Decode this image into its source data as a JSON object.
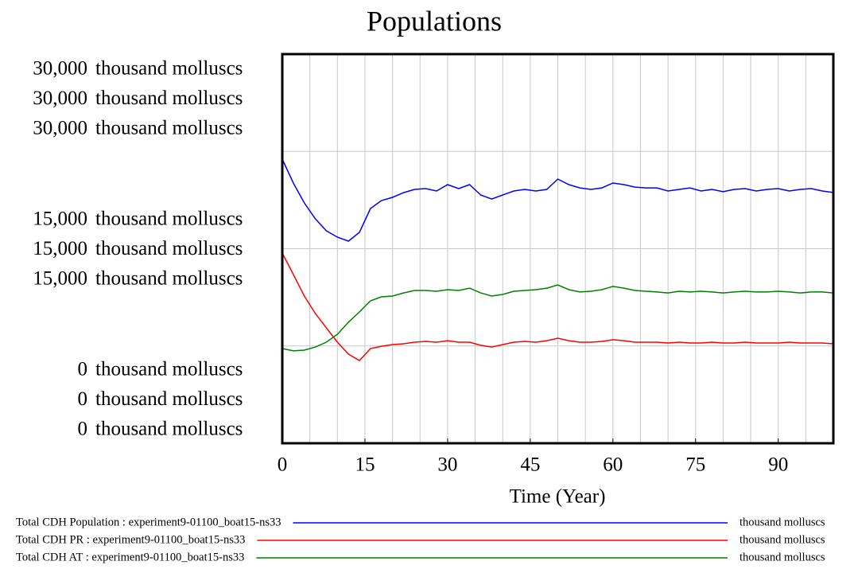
{
  "chart_data": {
    "type": "line",
    "title": "Populations",
    "x_label": "Time (Year)",
    "xlim": [
      0,
      100
    ],
    "xticks": [
      0,
      15,
      30,
      45,
      60,
      75,
      90
    ],
    "ylim": [
      0,
      30000
    ],
    "grid": true,
    "y_axes": [
      {
        "ticks": [
          {
            "value": 30000,
            "label": "30,000"
          },
          {
            "value": 15000,
            "label": "15,000"
          },
          0
        ],
        "unit": "thousand molluscs"
      },
      {
        "ticks": [
          {
            "value": 30000,
            "label": "30,000"
          },
          {
            "value": 15000,
            "label": "15,000"
          },
          0
        ],
        "unit": "thousand molluscs"
      },
      {
        "ticks": [
          {
            "value": 30000,
            "label": "30,000"
          },
          {
            "value": 15000,
            "label": "15,000"
          },
          0
        ],
        "unit": "thousand molluscs"
      }
    ],
    "x": [
      0,
      2,
      4,
      6,
      8,
      10,
      12,
      14,
      16,
      18,
      20,
      22,
      24,
      26,
      28,
      30,
      32,
      34,
      36,
      38,
      40,
      42,
      44,
      46,
      48,
      50,
      52,
      54,
      56,
      58,
      60,
      62,
      64,
      66,
      68,
      70,
      72,
      74,
      76,
      78,
      80,
      82,
      84,
      86,
      88,
      90,
      92,
      94,
      96,
      98,
      100
    ],
    "series": [
      {
        "name": "Total CDH Population : experiment9-01100_boat15-ns33",
        "unit": "thousand molluscs",
        "color": "#0000ff",
        "values": [
          21900,
          20060,
          18530,
          17300,
          16380,
          15890,
          15580,
          16260,
          18100,
          18710,
          18960,
          19320,
          19570,
          19630,
          19450,
          19940,
          19630,
          19940,
          19140,
          18830,
          19140,
          19450,
          19570,
          19450,
          19570,
          20370,
          19940,
          19690,
          19570,
          19690,
          20060,
          19940,
          19750,
          19690,
          19690,
          19450,
          19570,
          19690,
          19450,
          19570,
          19390,
          19570,
          19630,
          19450,
          19570,
          19630,
          19450,
          19570,
          19630,
          19450,
          19330
        ]
      },
      {
        "name": "Total CDH PR : experiment9-01100_boat15-ns33",
        "unit": "thousand molluscs",
        "color": "#ff0000",
        "values": [
          14660,
          13010,
          11350,
          10000,
          8900,
          7790,
          6870,
          6380,
          7300,
          7480,
          7610,
          7670,
          7790,
          7850,
          7790,
          7910,
          7790,
          7790,
          7550,
          7420,
          7610,
          7790,
          7850,
          7790,
          7910,
          8100,
          7910,
          7790,
          7790,
          7850,
          7980,
          7910,
          7790,
          7790,
          7790,
          7730,
          7790,
          7730,
          7730,
          7790,
          7730,
          7730,
          7790,
          7730,
          7730,
          7730,
          7790,
          7730,
          7730,
          7730,
          7670
        ]
      },
      {
        "name": "Total CDH AT : experiment9-01100_boat15-ns33",
        "unit": "thousand molluscs",
        "color": "#008000",
        "values": [
          7300,
          7120,
          7180,
          7420,
          7790,
          8400,
          9330,
          10120,
          10980,
          11290,
          11350,
          11590,
          11780,
          11780,
          11720,
          11840,
          11780,
          11960,
          11590,
          11350,
          11470,
          11720,
          11780,
          11840,
          11960,
          12210,
          11840,
          11660,
          11720,
          11840,
          12090,
          11960,
          11780,
          11720,
          11660,
          11590,
          11720,
          11660,
          11720,
          11660,
          11590,
          11660,
          11720,
          11660,
          11660,
          11720,
          11660,
          11590,
          11660,
          11660,
          11590
        ]
      }
    ]
  }
}
